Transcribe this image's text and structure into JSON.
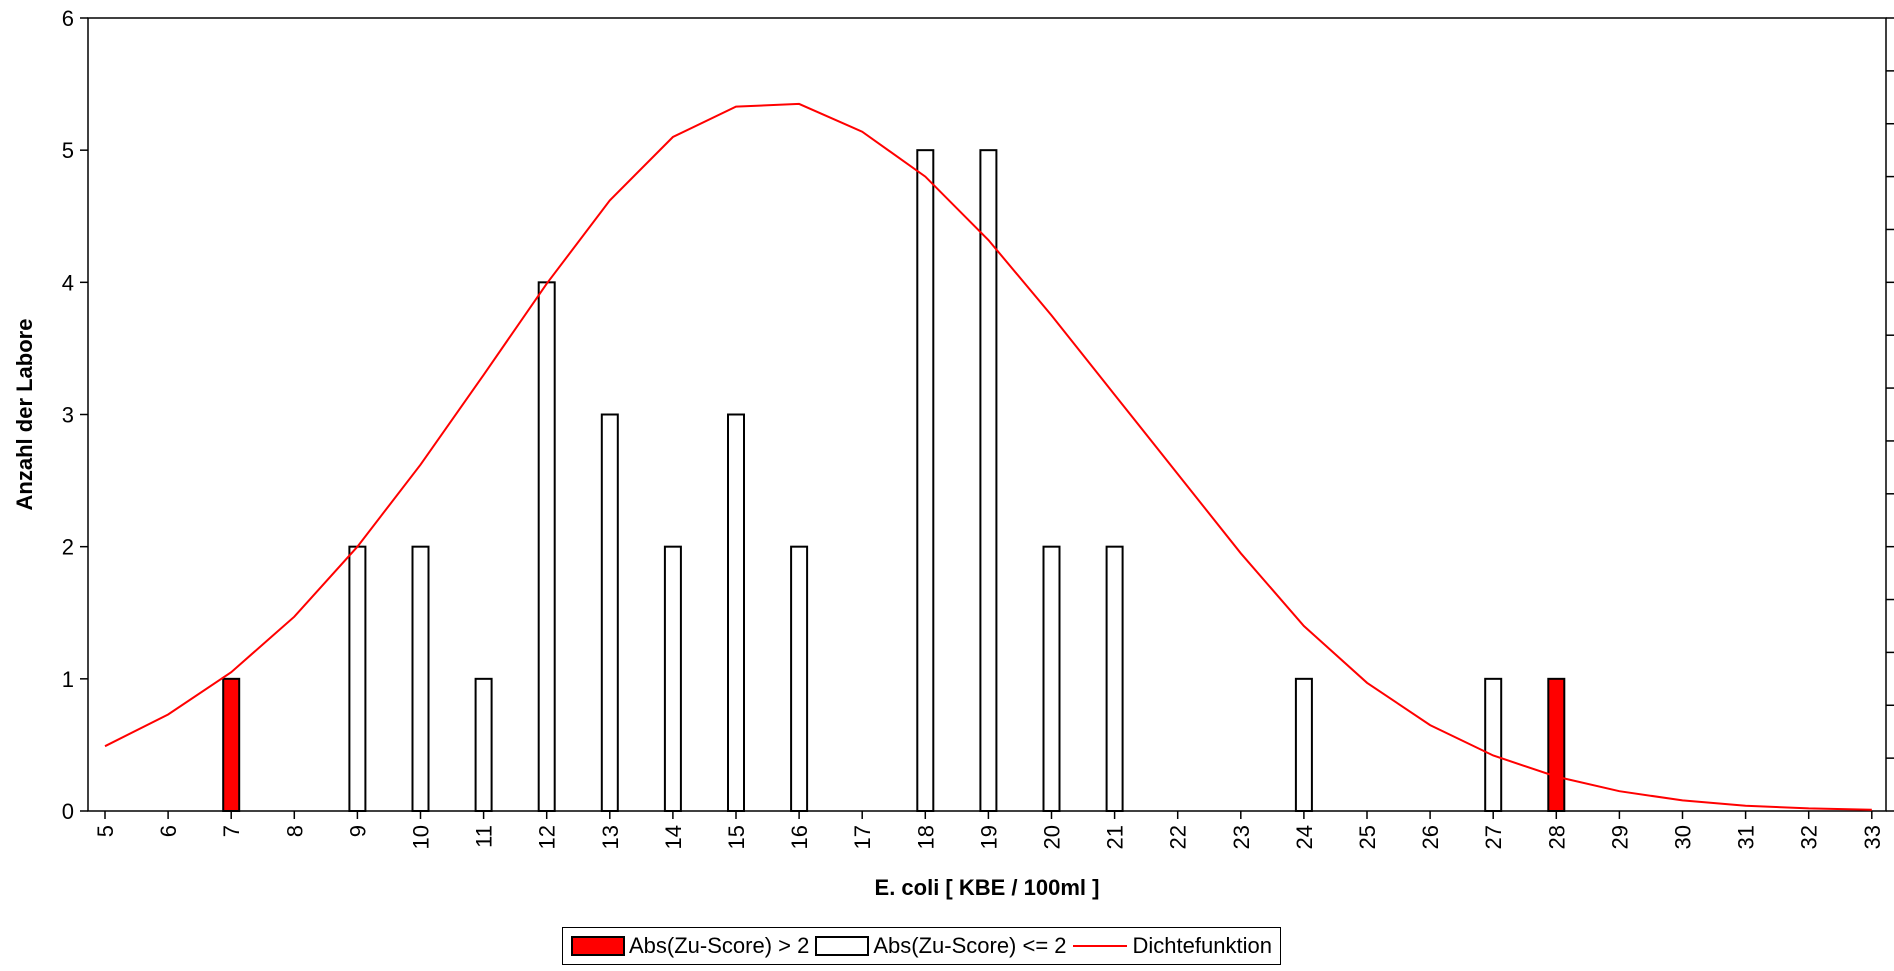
{
  "chart_data": {
    "type": "bar",
    "ylabel": "Anzahl der Labore",
    "xlabel": "E. coli [ KBE / 100ml ]",
    "ylim": [
      0,
      6
    ],
    "xlim": [
      5,
      33
    ],
    "y_ticks": [
      0,
      1,
      2,
      3,
      4,
      5,
      6
    ],
    "x_ticks": [
      5,
      6,
      7,
      8,
      9,
      10,
      11,
      12,
      13,
      14,
      15,
      16,
      17,
      18,
      19,
      20,
      21,
      22,
      23,
      24,
      25,
      26,
      27,
      28,
      29,
      30,
      31,
      32,
      33
    ],
    "grid": false,
    "legend_position": "bottom",
    "series": [
      {
        "name": "Abs(Zu-Score) > 2",
        "color": "#ff0000",
        "points": [
          {
            "x": 7,
            "y": 1
          },
          {
            "x": 28,
            "y": 1
          }
        ]
      },
      {
        "name": "Abs(Zu-Score) <= 2",
        "color": "#ffffff",
        "points": [
          {
            "x": 9,
            "y": 2
          },
          {
            "x": 10,
            "y": 2
          },
          {
            "x": 11,
            "y": 1
          },
          {
            "x": 12,
            "y": 4
          },
          {
            "x": 13,
            "y": 3
          },
          {
            "x": 14,
            "y": 2
          },
          {
            "x": 15,
            "y": 3
          },
          {
            "x": 16,
            "y": 2
          },
          {
            "x": 18,
            "y": 5
          },
          {
            "x": 19,
            "y": 5
          },
          {
            "x": 20,
            "y": 2
          },
          {
            "x": 21,
            "y": 2
          },
          {
            "x": 24,
            "y": 1
          },
          {
            "x": 27,
            "y": 1
          }
        ]
      },
      {
        "name": "Dichtefunktion",
        "type": "line",
        "color": "#ff0000",
        "points": [
          {
            "x": 5,
            "y": 0.49
          },
          {
            "x": 6,
            "y": 0.73
          },
          {
            "x": 7,
            "y": 1.05
          },
          {
            "x": 8,
            "y": 1.47
          },
          {
            "x": 9,
            "y": 2.0
          },
          {
            "x": 10,
            "y": 2.62
          },
          {
            "x": 11,
            "y": 3.3
          },
          {
            "x": 12,
            "y": 3.99
          },
          {
            "x": 13,
            "y": 4.62
          },
          {
            "x": 14,
            "y": 5.1
          },
          {
            "x": 15,
            "y": 5.33
          },
          {
            "x": 16,
            "y": 5.35
          },
          {
            "x": 17,
            "y": 5.14
          },
          {
            "x": 18,
            "y": 4.8
          },
          {
            "x": 19,
            "y": 4.32
          },
          {
            "x": 20,
            "y": 3.75
          },
          {
            "x": 21,
            "y": 3.15
          },
          {
            "x": 22,
            "y": 2.55
          },
          {
            "x": 23,
            "y": 1.95
          },
          {
            "x": 24,
            "y": 1.4
          },
          {
            "x": 25,
            "y": 0.97
          },
          {
            "x": 26,
            "y": 0.65
          },
          {
            "x": 27,
            "y": 0.42
          },
          {
            "x": 28,
            "y": 0.26
          },
          {
            "x": 29,
            "y": 0.15
          },
          {
            "x": 30,
            "y": 0.08
          },
          {
            "x": 31,
            "y": 0.04
          },
          {
            "x": 32,
            "y": 0.02
          },
          {
            "x": 33,
            "y": 0.01
          }
        ]
      }
    ]
  }
}
